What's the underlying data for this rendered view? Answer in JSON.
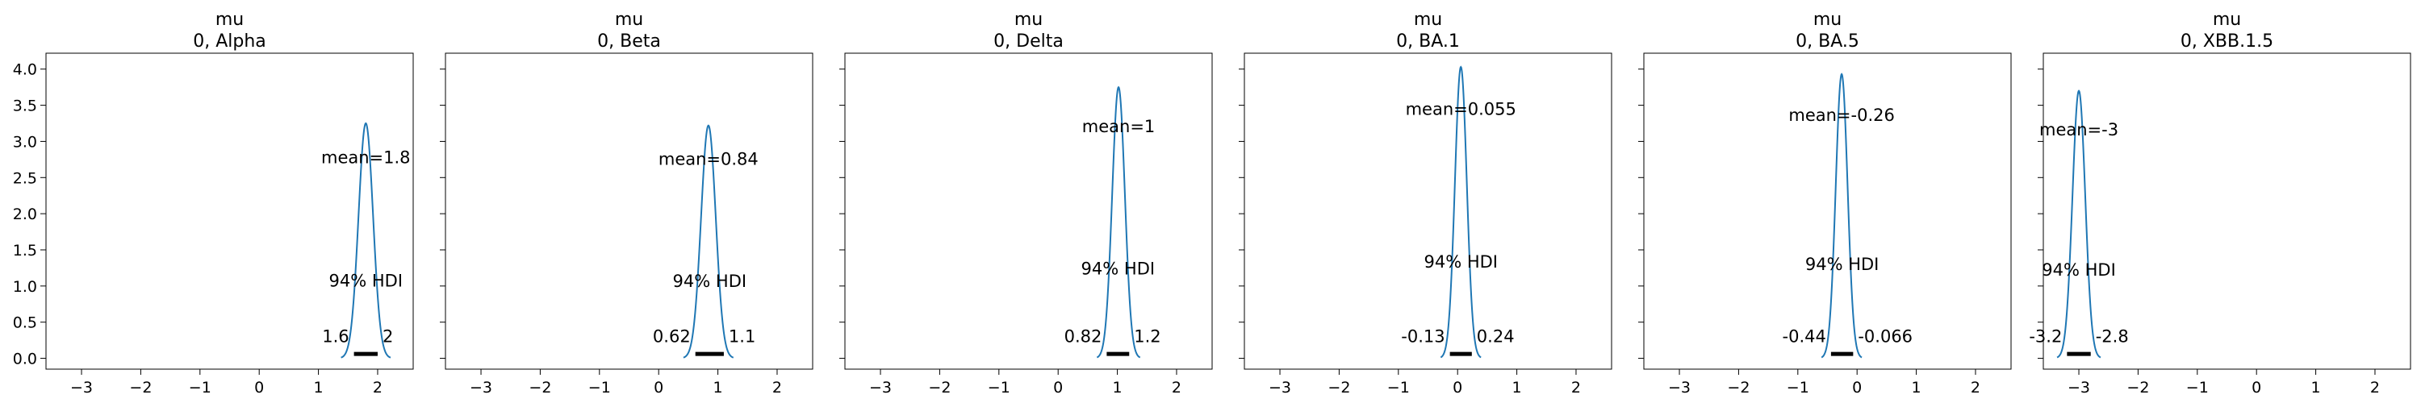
{
  "chart_data": [
    {
      "type": "kde",
      "title": [
        "mu",
        "0, Alpha"
      ],
      "mean": 1.8,
      "sd": 0.123,
      "peak": 3.25,
      "hdi": [
        1.6,
        2.0
      ],
      "mean_label": "mean=1.8",
      "hdi_label": "94% HDI",
      "hdi_low_label": "1.6",
      "hdi_high_label": "2"
    },
    {
      "type": "kde",
      "title": [
        "mu",
        "0, Beta"
      ],
      "mean": 0.84,
      "sd": 0.124,
      "peak": 3.22,
      "hdi": [
        0.62,
        1.1
      ],
      "mean_label": "mean=0.84",
      "hdi_label": "94% HDI",
      "hdi_low_label": "0.62",
      "hdi_high_label": "1.1"
    },
    {
      "type": "kde",
      "title": [
        "mu",
        "0, Delta"
      ],
      "mean": 1.02,
      "sd": 0.107,
      "peak": 3.75,
      "hdi": [
        0.82,
        1.2
      ],
      "mean_label": "mean=1",
      "hdi_label": "94% HDI",
      "hdi_low_label": "0.82",
      "hdi_high_label": "1.2"
    },
    {
      "type": "kde",
      "title": [
        "mu",
        "0, BA.1"
      ],
      "mean": 0.055,
      "sd": 0.1,
      "peak": 4.03,
      "hdi": [
        -0.13,
        0.24
      ],
      "mean_label": "mean=0.055",
      "hdi_label": "94% HDI",
      "hdi_low_label": "-0.13",
      "hdi_high_label": "0.24"
    },
    {
      "type": "kde",
      "title": [
        "mu",
        "0, BA.5"
      ],
      "mean": -0.26,
      "sd": 0.1,
      "peak": 3.93,
      "hdi": [
        -0.44,
        -0.066
      ],
      "mean_label": "mean=-0.26",
      "hdi_label": "94% HDI",
      "hdi_low_label": "-0.44",
      "hdi_high_label": "-0.066"
    },
    {
      "type": "kde",
      "title": [
        "mu",
        "0, XBB.1.5"
      ],
      "mean": -3.0,
      "sd": 0.108,
      "peak": 3.7,
      "hdi": [
        -3.2,
        -2.8
      ],
      "mean_label": "mean=-3",
      "hdi_label": "94% HDI",
      "hdi_low_label": "-3.2",
      "hdi_high_label": "-2.8"
    }
  ],
  "axes": {
    "xlim": [
      -3.6,
      2.6
    ],
    "ylim": [
      -0.15,
      4.22
    ],
    "x_ticks": [
      -3,
      -2,
      -1,
      0,
      1,
      2
    ],
    "x_tick_labels": [
      "−3",
      "−2",
      "−1",
      "0",
      "1",
      "2"
    ],
    "y_ticks": [
      0,
      0.5,
      1,
      1.5,
      2,
      2.5,
      3,
      3.5,
      4
    ],
    "y_tick_labels": [
      "0.0",
      "0.5",
      "1.0",
      "1.5",
      "2.0",
      "2.5",
      "3.0",
      "3.5",
      "4.0"
    ],
    "shared_y": true
  },
  "colors": {
    "kde_line": "#1f77b4",
    "hdi_bar": "#000000",
    "axes": "#000000"
  }
}
